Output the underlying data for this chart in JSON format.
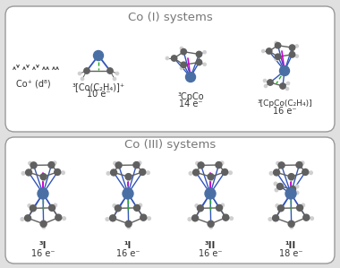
{
  "title_top": "Co (I) systems",
  "title_bottom": "Co (III) systems",
  "bg_color": "#e0e0e0",
  "panel_bg": "#ffffff",
  "border_color": "#999999",
  "cobalt_color": "#4a6fa5",
  "carbon_color": "#606060",
  "hydrogen_color": "#d0d0d0",
  "bond_blue": "#3355bb",
  "bond_magenta": "#cc00cc",
  "bond_green": "#22aa22",
  "title_fontsize": 9.5,
  "label_fontsize": 7,
  "sub_fontsize": 6.5,
  "top_labels": [
    "Co⁺ (d⁸)",
    "³[Co(C₂H₄)]⁺\n10 e⁻",
    "³CpCo\n14 e⁻",
    "³[CpCo(C₂H₄)]\n16 e⁻"
  ],
  "bottom_labels": [
    "³I\n16 e⁻",
    "¹I\n16 e⁻",
    "³II\n16 e⁻",
    "¹II\n18 e⁻"
  ]
}
